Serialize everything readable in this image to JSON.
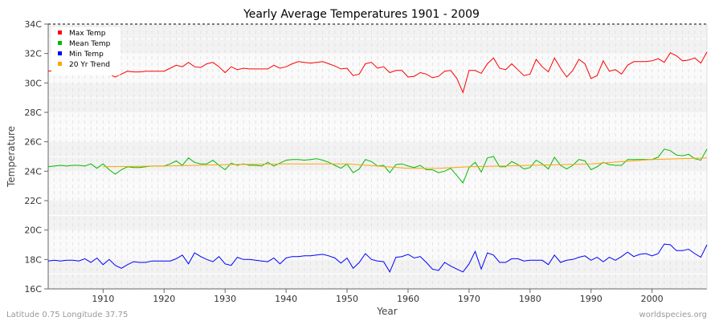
{
  "chart_data": {
    "type": "line",
    "title": "Yearly Average Temperatures 1901 - 2009",
    "xlabel": "Year",
    "ylabel": "Temperature",
    "xlim": [
      1901,
      2009
    ],
    "ylim": [
      16,
      34
    ],
    "x_ticks": [
      1910,
      1920,
      1930,
      1940,
      1950,
      1960,
      1970,
      1980,
      1990,
      2000
    ],
    "y_ticks": [
      16,
      18,
      20,
      22,
      24,
      26,
      28,
      30,
      32,
      34
    ],
    "y_tick_labels": [
      "16C",
      "18C",
      "20C",
      "22C",
      "24C",
      "26C",
      "28C",
      "30C",
      "32C",
      "34C"
    ],
    "legend_placement": "top-left",
    "series": [
      {
        "name": "Max Temp",
        "color": "#ff0000",
        "start": 1901,
        "values": [
          30.8,
          30.85,
          30.8,
          30.8,
          30.8,
          30.85,
          30.8,
          30.8,
          30.85,
          30.9,
          30.6,
          30.4,
          30.6,
          30.8,
          30.75,
          30.75,
          30.8,
          30.8,
          30.8,
          30.8,
          31.0,
          31.2,
          31.1,
          31.4,
          31.1,
          31.05,
          31.3,
          31.4,
          31.1,
          30.7,
          31.1,
          30.9,
          31.0,
          30.95,
          30.95,
          30.95,
          30.95,
          31.2,
          31.0,
          31.1,
          31.3,
          31.45,
          31.4,
          31.35,
          31.4,
          31.45,
          31.3,
          31.15,
          30.95,
          31.0,
          30.5,
          30.6,
          31.3,
          31.4,
          31.0,
          31.1,
          30.7,
          30.85,
          30.85,
          30.4,
          30.45,
          30.7,
          30.6,
          30.35,
          30.45,
          30.8,
          30.85,
          30.3,
          29.35,
          30.85,
          30.85,
          30.65,
          31.3,
          31.7,
          31.0,
          30.9,
          31.3,
          30.9,
          30.5,
          30.6,
          31.6,
          31.1,
          30.75,
          31.7,
          31.0,
          30.4,
          30.85,
          31.6,
          31.3,
          30.3,
          30.5,
          31.5,
          30.8,
          30.9,
          30.6,
          31.2,
          31.45,
          31.45,
          31.45,
          31.5,
          31.65,
          31.4,
          32.05,
          31.85,
          31.5,
          31.55,
          31.7,
          31.35,
          32.1
        ]
      },
      {
        "name": "Mean Temp",
        "color": "#00bb00",
        "start": 1901,
        "values": [
          24.3,
          24.35,
          24.4,
          24.35,
          24.4,
          24.4,
          24.35,
          24.5,
          24.2,
          24.5,
          24.1,
          23.8,
          24.1,
          24.3,
          24.25,
          24.25,
          24.3,
          24.35,
          24.35,
          24.35,
          24.5,
          24.7,
          24.4,
          24.9,
          24.6,
          24.5,
          24.5,
          24.75,
          24.4,
          24.1,
          24.55,
          24.4,
          24.5,
          24.4,
          24.4,
          24.35,
          24.6,
          24.35,
          24.55,
          24.75,
          24.8,
          24.8,
          24.75,
          24.8,
          24.85,
          24.75,
          24.6,
          24.4,
          24.2,
          24.5,
          23.9,
          24.15,
          24.8,
          24.65,
          24.35,
          24.4,
          23.9,
          24.45,
          24.5,
          24.35,
          24.25,
          24.4,
          24.1,
          24.1,
          23.9,
          24.0,
          24.2,
          23.7,
          23.2,
          24.25,
          24.6,
          23.95,
          24.9,
          25.0,
          24.3,
          24.3,
          24.65,
          24.45,
          24.15,
          24.25,
          24.75,
          24.5,
          24.15,
          24.95,
          24.4,
          24.15,
          24.4,
          24.8,
          24.7,
          24.1,
          24.3,
          24.6,
          24.45,
          24.4,
          24.4,
          24.8,
          24.8,
          24.8,
          24.8,
          24.8,
          24.95,
          25.5,
          25.4,
          25.1,
          25.05,
          25.15,
          24.85,
          24.75,
          25.5
        ]
      },
      {
        "name": "Min Temp",
        "color": "#0000ff",
        "start": 1901,
        "values": [
          17.9,
          17.95,
          17.9,
          17.95,
          17.95,
          17.9,
          18.05,
          17.8,
          18.1,
          17.65,
          18.0,
          17.6,
          17.4,
          17.65,
          17.85,
          17.8,
          17.8,
          17.9,
          17.9,
          17.9,
          17.9,
          18.05,
          18.3,
          17.7,
          18.45,
          18.2,
          18.0,
          17.85,
          18.2,
          17.7,
          17.6,
          18.15,
          18.0,
          18.0,
          17.95,
          17.9,
          17.85,
          18.1,
          17.7,
          18.1,
          18.2,
          18.2,
          18.25,
          18.25,
          18.3,
          18.35,
          18.25,
          18.1,
          17.75,
          18.1,
          17.4,
          17.8,
          18.4,
          18.0,
          17.9,
          17.85,
          17.15,
          18.15,
          18.2,
          18.35,
          18.1,
          18.2,
          17.8,
          17.35,
          17.25,
          17.8,
          17.55,
          17.35,
          17.15,
          17.7,
          18.55,
          17.35,
          18.45,
          18.3,
          17.8,
          17.8,
          18.05,
          18.05,
          17.9,
          17.95,
          17.95,
          17.95,
          17.65,
          18.3,
          17.8,
          17.95,
          18.0,
          18.15,
          18.25,
          17.95,
          18.15,
          17.85,
          18.15,
          17.95,
          18.2,
          18.5,
          18.2,
          18.35,
          18.4,
          18.25,
          18.4,
          19.05,
          19.0,
          18.6,
          18.6,
          18.7,
          18.4,
          18.15,
          19.0
        ]
      },
      {
        "name": "20 Yr Trend",
        "color": "#ffa500",
        "x": [
          1910,
          1920,
          1930,
          1940,
          1950,
          1955,
          1960,
          1965,
          1970,
          1980,
          1990,
          2000,
          2009
        ],
        "values": [
          24.3,
          24.35,
          24.45,
          24.5,
          24.5,
          24.35,
          24.2,
          24.2,
          24.3,
          24.4,
          24.5,
          24.8,
          24.9
        ]
      }
    ]
  },
  "footer": {
    "location": "Latitude 0.75 Longitude 37.75",
    "site": "worldspecies.org"
  }
}
